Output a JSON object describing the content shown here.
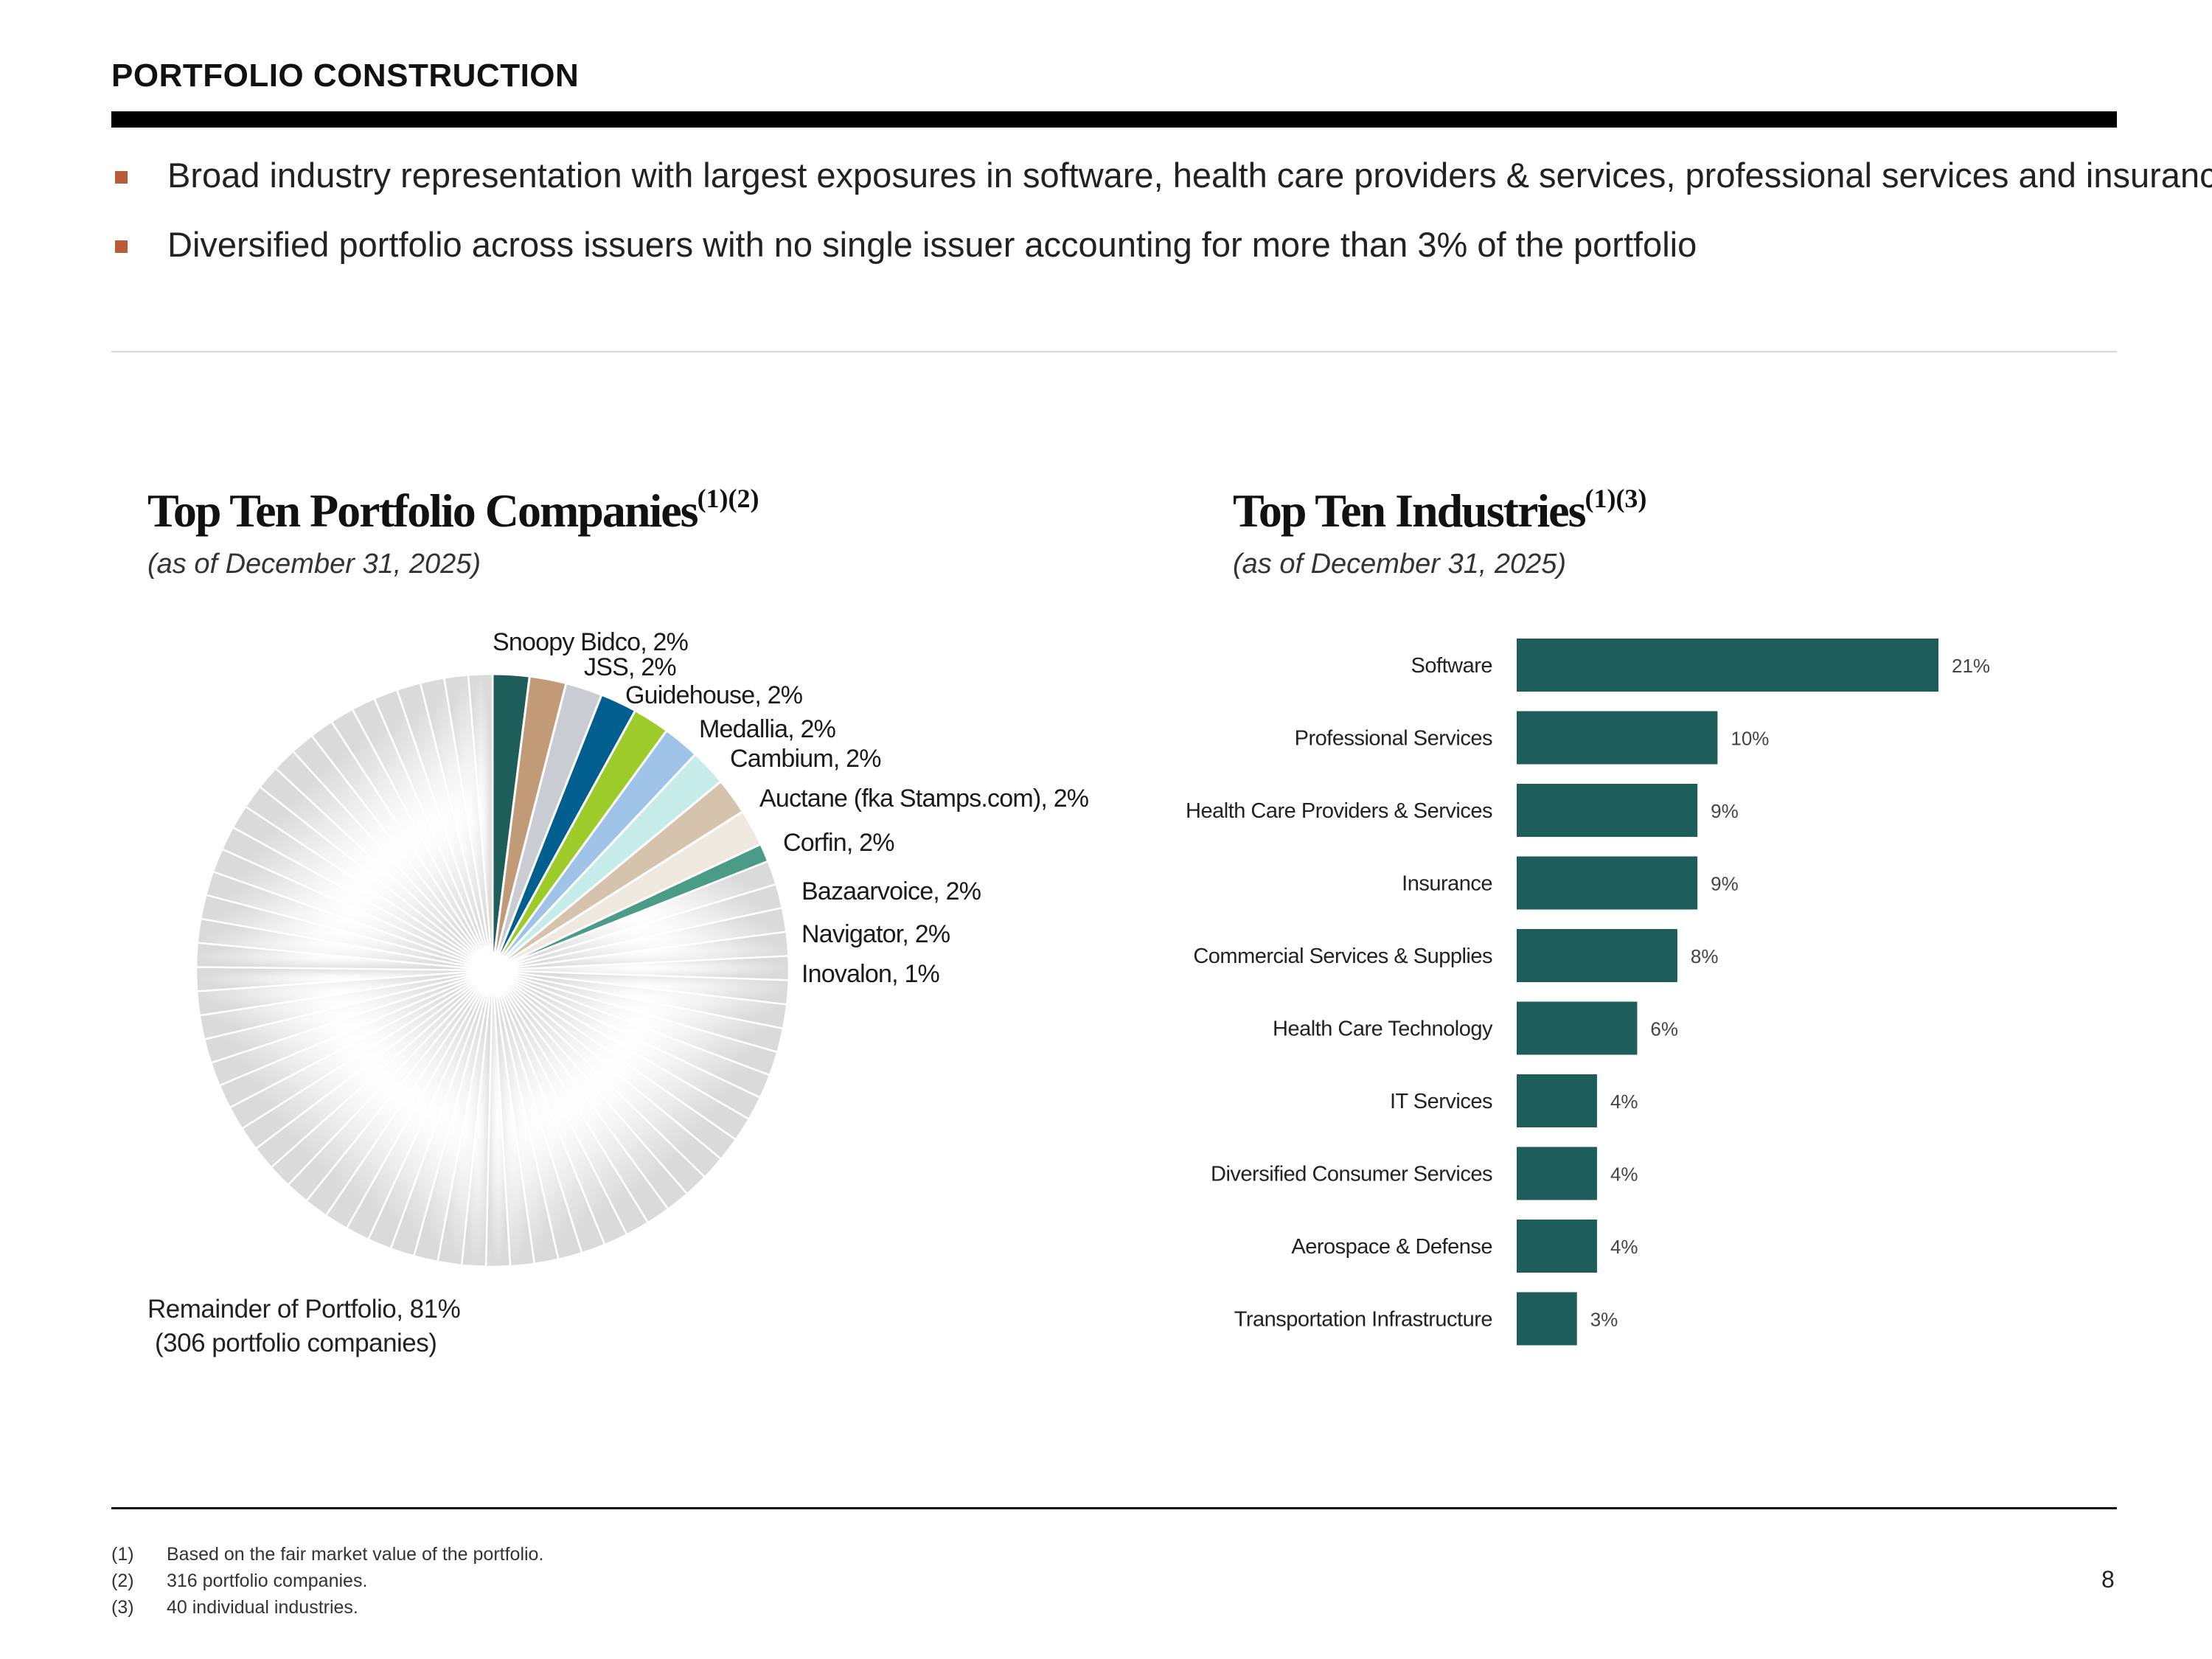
{
  "header": {
    "title": "PORTFOLIO CONSTRUCTION"
  },
  "bullets": [
    "Broad industry representation with largest exposures in software, health care providers & services, professional services and insurance",
    "Diversified portfolio across issuers with no single issuer accounting for more than 3% of the portfolio"
  ],
  "left_panel": {
    "title": "Top Ten Portfolio Companies",
    "title_superscript": "(1)(2)",
    "subtitle": "(as of December 31, 2025)",
    "remainder_line1": "Remainder of Portfolio, 81%",
    "remainder_line2": "(306 portfolio companies)"
  },
  "right_panel": {
    "title": "Top Ten Industries",
    "title_superscript": "(1)(3)",
    "subtitle": "(as of December 31, 2025)"
  },
  "chart_data": [
    {
      "type": "pie",
      "title": "Top Ten Portfolio Companies",
      "slices": [
        {
          "name": "Snoopy Bidco",
          "value": 2,
          "label": "Snoopy Bidco, 2%",
          "color": "#1d5e5a"
        },
        {
          "name": "JSS",
          "value": 2,
          "label": "JSS, 2%",
          "color": "#c19a78"
        },
        {
          "name": "Guidehouse",
          "value": 2,
          "label": "Guidehouse, 2%",
          "color": "#c9ccd3"
        },
        {
          "name": "Medallia",
          "value": 2,
          "label": "Medallia, 2%",
          "color": "#005f8e"
        },
        {
          "name": "Cambium",
          "value": 2,
          "label": "Cambium, 2%",
          "color": "#9dcb2a"
        },
        {
          "name": "Auctane (fka Stamps.com)",
          "value": 2,
          "label": "Auctane (fka Stamps.com), 2%",
          "color": "#9fc3e6"
        },
        {
          "name": "Corfin",
          "value": 2,
          "label": "Corfin, 2%",
          "color": "#c5ece8"
        },
        {
          "name": "Bazaarvoice",
          "value": 2,
          "label": "Bazaarvoice, 2%",
          "color": "#d6c3ad"
        },
        {
          "name": "Navigator",
          "value": 2,
          "label": "Navigator, 2%",
          "color": "#efe8de"
        },
        {
          "name": "Inovalon",
          "value": 1,
          "label": "Inovalon, 1%",
          "color": "#4a9c87"
        },
        {
          "name": "Remainder of Portfolio",
          "value": 81,
          "label": "Remainder of Portfolio, 81%",
          "note": "(306 portfolio companies)",
          "color": "#dcdcdc"
        }
      ]
    },
    {
      "type": "bar",
      "orientation": "horizontal",
      "title": "Top Ten Industries",
      "categories": [
        "Software",
        "Professional Services",
        "Health Care Providers & Services",
        "Insurance",
        "Commercial Services & Supplies",
        "Health Care Technology",
        "IT Services",
        "Diversified Consumer Services",
        "Aerospace & Defense",
        "Transportation Infrastructure"
      ],
      "values": [
        21,
        10,
        9,
        9,
        8,
        6,
        4,
        4,
        4,
        3
      ],
      "value_labels": [
        "21%",
        "10%",
        "9%",
        "9%",
        "8%",
        "6%",
        "4%",
        "4%",
        "4%",
        "3%"
      ],
      "bar_color": "#1d5e5a"
    }
  ],
  "footnotes": [
    {
      "num": "(1)",
      "text": "Based on the fair market value of the portfolio."
    },
    {
      "num": "(2)",
      "text": "316 portfolio companies."
    },
    {
      "num": "(3)",
      "text": "40 individual industries."
    }
  ],
  "page_number": "8"
}
